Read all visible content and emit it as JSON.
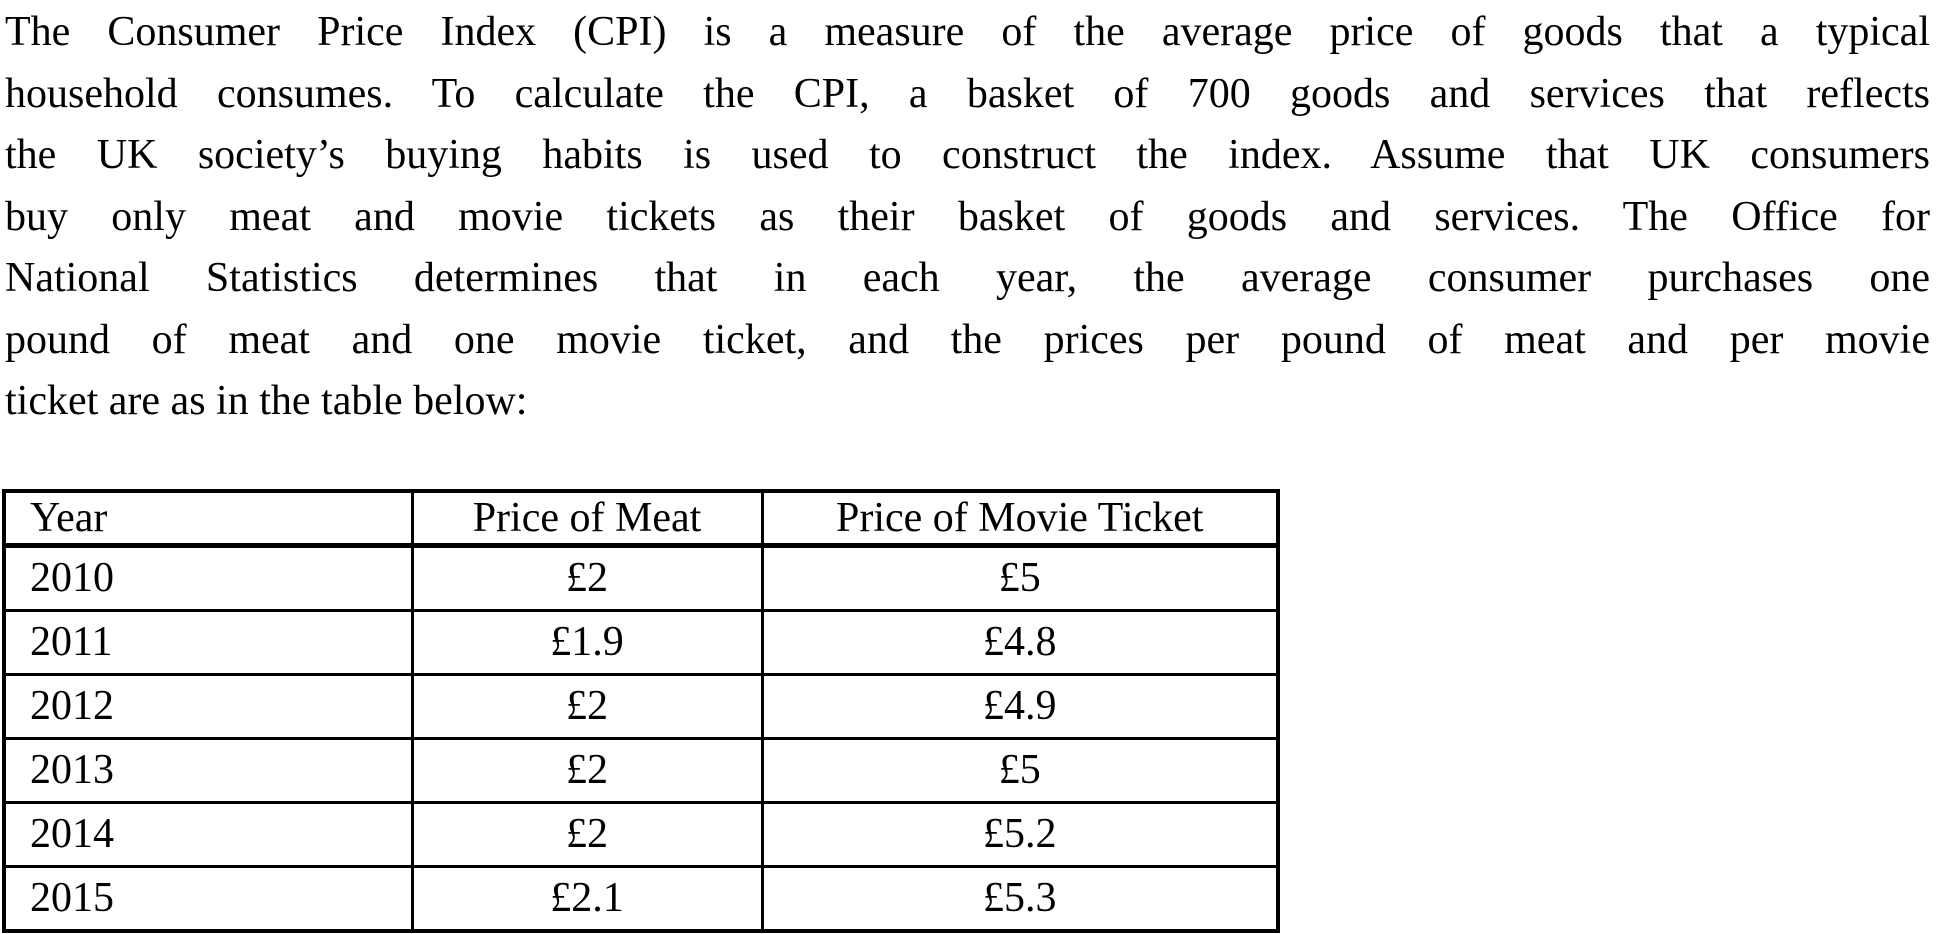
{
  "document": {
    "paragraph": {
      "lines": [
        "The Consumer Price Index (CPI) is a measure of the average price of goods that a typical",
        "household consumes.  To calculate the CPI, a basket of 700 goods and services that reflects",
        "the UK society’s buying habits is used to construct the index.  Assume that UK consumers",
        "buy only meat and movie tickets as their basket of goods and services.  The Office for",
        "National Statistics determines that in each year, the average consumer purchases one",
        "pound of meat and one movie ticket, and the prices per pound of meat and per movie",
        "ticket are as in the table below:"
      ]
    },
    "table": {
      "headers": [
        "Year",
        "Price of Meat",
        "Price of Movie Ticket"
      ],
      "rows": [
        [
          "2010",
          "£2",
          "£5"
        ],
        [
          "2011",
          "£1.9",
          "£4.8"
        ],
        [
          "2012",
          "£2",
          "£4.9"
        ],
        [
          "2013",
          "£2",
          "£5"
        ],
        [
          "2014",
          "£2",
          "£5.2"
        ],
        [
          "2015",
          "£2.1",
          "£5.3"
        ]
      ]
    }
  }
}
